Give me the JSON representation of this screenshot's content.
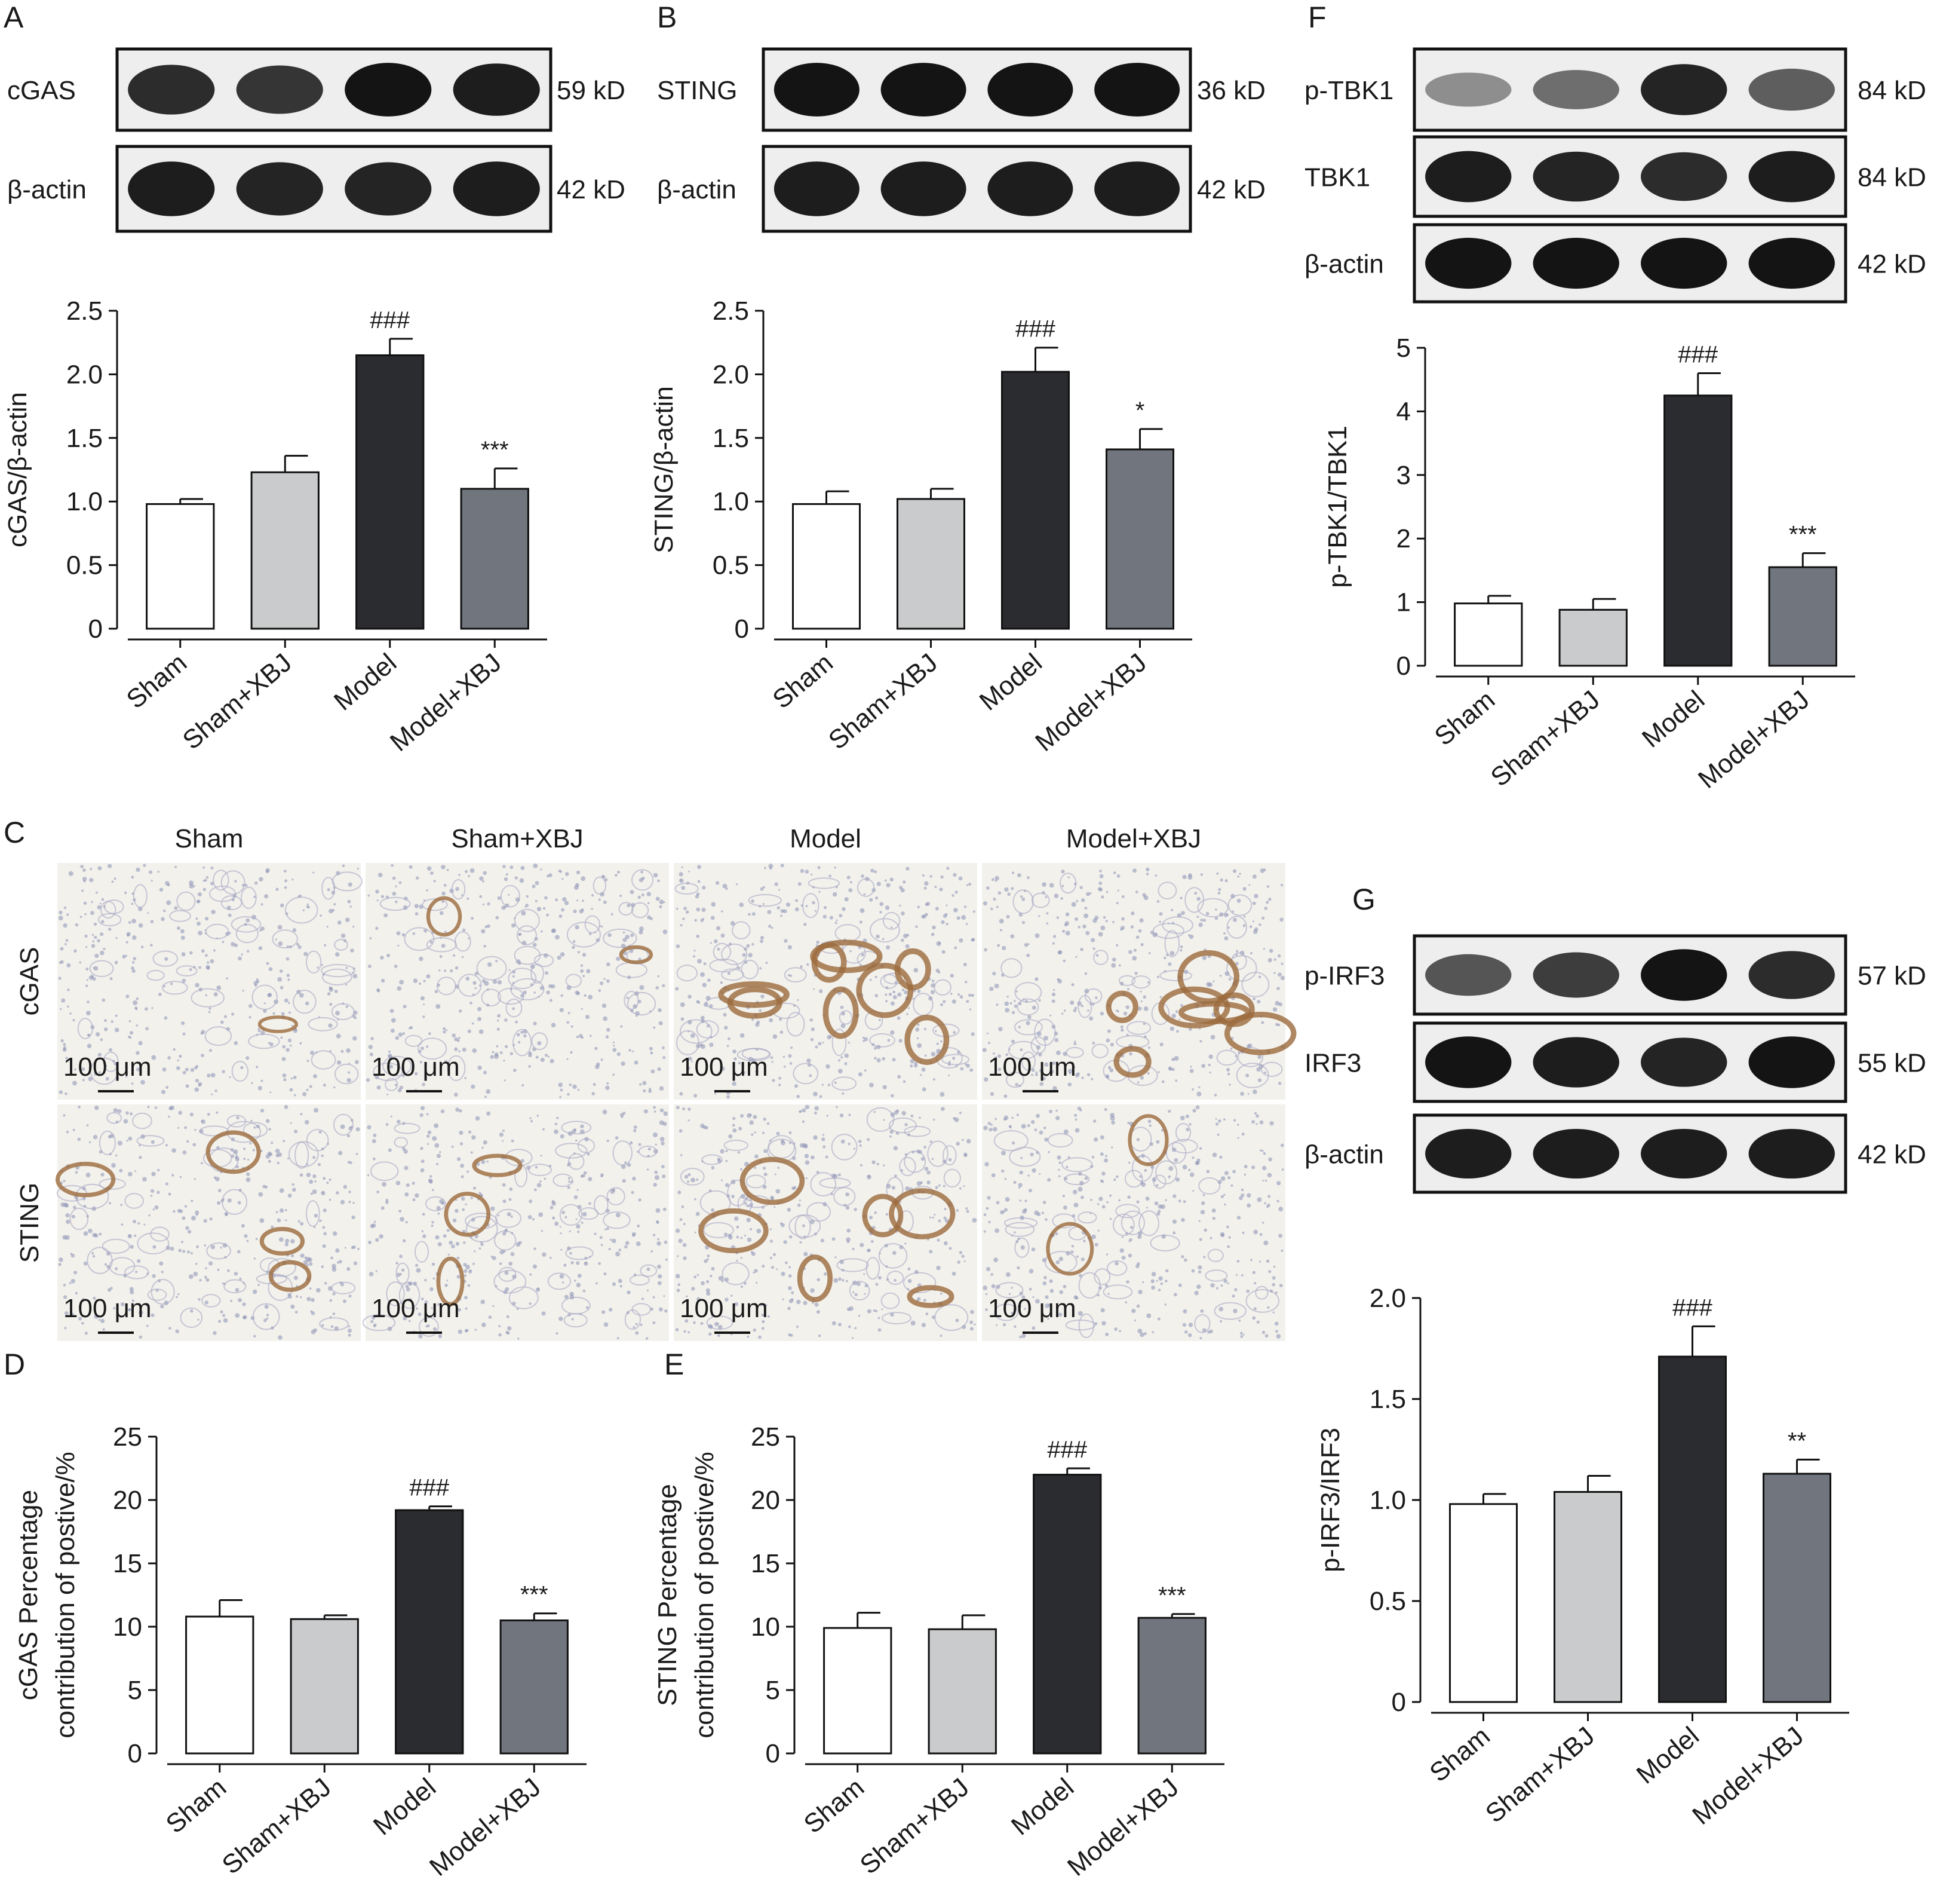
{
  "panel_letters": [
    "A",
    "B",
    "C",
    "D",
    "E",
    "F",
    "G"
  ],
  "groups": [
    "Sham",
    "Sham+XBJ",
    "Model",
    "Model+XBJ"
  ],
  "colors": {
    "sham": "#ffffff",
    "sham_xbj": "#c9cbcc",
    "model": "#2b2c30",
    "model_xbj": "#71767e",
    "band": "#141414",
    "blot_bg": "#eeeeee",
    "tissue_bg": "#f2f1ec",
    "stain_blue": "#8b8fb5",
    "stain_brown": "#9b6a3c"
  },
  "blots": {
    "A": [
      {
        "label": "cGAS",
        "mw": "59 kD",
        "intensity": [
          0.85,
          0.8,
          1.0,
          0.95
        ]
      },
      {
        "label": "β-actin",
        "mw": "42 kD",
        "intensity": [
          0.95,
          0.9,
          0.9,
          0.95
        ]
      }
    ],
    "B": [
      {
        "label": "STING",
        "mw": "36 kD",
        "intensity": [
          1.0,
          1.0,
          1.0,
          1.0
        ]
      },
      {
        "label": "β-actin",
        "mw": "42 kD",
        "intensity": [
          0.95,
          0.95,
          0.95,
          0.95
        ]
      }
    ],
    "F": [
      {
        "label": "p-TBK1",
        "mw": "84 kD",
        "intensity": [
          0.25,
          0.45,
          0.9,
          0.55
        ]
      },
      {
        "label": "TBK1",
        "mw": "84 kD",
        "intensity": [
          0.95,
          0.9,
          0.85,
          0.95
        ]
      },
      {
        "label": "β-actin",
        "mw": "42 kD",
        "intensity": [
          1.0,
          1.0,
          1.0,
          1.0
        ]
      }
    ],
    "G": [
      {
        "label": "p-IRF3",
        "mw": "57 kD",
        "intensity": [
          0.6,
          0.75,
          1.0,
          0.85
        ]
      },
      {
        "label": "IRF3",
        "mw": "55 kD",
        "intensity": [
          1.0,
          0.95,
          0.9,
          1.0
        ]
      },
      {
        "label": "β-actin",
        "mw": "42 kD",
        "intensity": [
          0.95,
          0.95,
          0.95,
          0.95
        ]
      }
    ]
  },
  "ihc": {
    "columns": [
      "Sham",
      "Sham+XBJ",
      "Model",
      "Model+XBJ"
    ],
    "rows": [
      "cGAS",
      "STING"
    ],
    "scale_bar": "100 μm",
    "brown_staining": [
      [
        0.1,
        0.2,
        0.75,
        0.7
      ],
      [
        0.35,
        0.3,
        0.6,
        0.2
      ]
    ]
  },
  "chart_data": [
    {
      "panel": "A",
      "type": "bar",
      "categories": [
        "Sham",
        "Sham+XBJ",
        "Model",
        "Model+XBJ"
      ],
      "values": [
        0.98,
        1.23,
        2.15,
        1.1
      ],
      "errors": [
        0.04,
        0.13,
        0.13,
        0.16
      ],
      "significance": [
        "",
        "",
        "###",
        "***"
      ],
      "ylabel": "cGAS/β-actin",
      "ylim": [
        0,
        2.5
      ],
      "yticks": [
        "0",
        "0.5",
        "1.0",
        "1.5",
        "2.0",
        "2.5"
      ]
    },
    {
      "panel": "B",
      "type": "bar",
      "categories": [
        "Sham",
        "Sham+XBJ",
        "Model",
        "Model+XBJ"
      ],
      "values": [
        0.98,
        1.02,
        2.02,
        1.41
      ],
      "errors": [
        0.1,
        0.08,
        0.19,
        0.16
      ],
      "significance": [
        "",
        "",
        "###",
        "*"
      ],
      "ylabel": "STING/β-actin",
      "ylim": [
        0,
        2.5
      ],
      "yticks": [
        "0",
        "0.5",
        "1.0",
        "1.5",
        "2.0",
        "2.5"
      ]
    },
    {
      "panel": "F",
      "type": "bar",
      "categories": [
        "Sham",
        "Sham+XBJ",
        "Model",
        "Model+XBJ"
      ],
      "values": [
        0.98,
        0.88,
        4.25,
        1.55
      ],
      "errors": [
        0.12,
        0.17,
        0.35,
        0.22
      ],
      "significance": [
        "",
        "",
        "###",
        "***"
      ],
      "ylabel": "p-TBK1/TBK1",
      "ylim": [
        0,
        5
      ],
      "yticks": [
        "0",
        "1",
        "2",
        "3",
        "4",
        "5"
      ]
    },
    {
      "panel": "D",
      "type": "bar",
      "categories": [
        "Sham",
        "Sham+XBJ",
        "Model",
        "Model+XBJ"
      ],
      "values": [
        10.8,
        10.6,
        19.2,
        10.5
      ],
      "errors": [
        1.3,
        0.3,
        0.3,
        0.55
      ],
      "significance": [
        "",
        "",
        "###",
        "***"
      ],
      "ylabel": [
        "cGAS Percentage",
        "contribution of postive/%"
      ],
      "ylim": [
        0,
        25
      ],
      "yticks": [
        "0",
        "5",
        "10",
        "15",
        "20",
        "25"
      ]
    },
    {
      "panel": "E",
      "type": "bar",
      "categories": [
        "Sham",
        "Sham+XBJ",
        "Model",
        "Model+XBJ"
      ],
      "values": [
        9.9,
        9.8,
        22.0,
        10.7
      ],
      "errors": [
        1.2,
        1.1,
        0.5,
        0.3
      ],
      "significance": [
        "",
        "",
        "###",
        "***"
      ],
      "ylabel": [
        "STING Percentage",
        "contribution of postive/%"
      ],
      "ylim": [
        0,
        25
      ],
      "yticks": [
        "0",
        "5",
        "10",
        "15",
        "20",
        "25"
      ]
    },
    {
      "panel": "G",
      "type": "bar",
      "categories": [
        "Sham",
        "Sham+XBJ",
        "Model",
        "Model+XBJ"
      ],
      "values": [
        0.98,
        1.04,
        1.71,
        1.13
      ],
      "errors": [
        0.05,
        0.08,
        0.15,
        0.07
      ],
      "significance": [
        "",
        "",
        "###",
        "**"
      ],
      "ylabel": "p-IRF3/IRF3",
      "ylim": [
        0,
        2.0
      ],
      "yticks": [
        "0",
        "0.5",
        "1.0",
        "1.5",
        "2.0"
      ]
    }
  ]
}
